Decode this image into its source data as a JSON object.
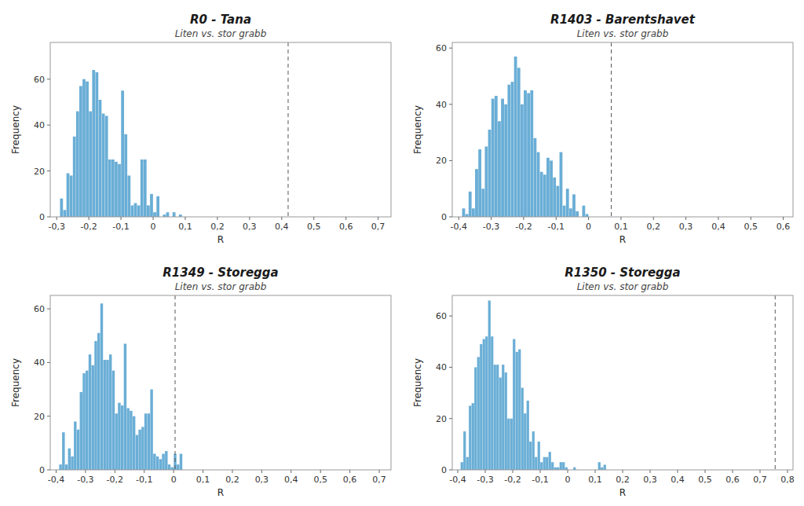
{
  "chart_data": [
    {
      "type": "histogram",
      "title": "R0 - Tana",
      "subtitle": "Liten vs. stor grabb",
      "x_label": "R",
      "y_label": "Frequency",
      "color": "#6aaed6",
      "grid": false,
      "xlim": [
        -0.32,
        0.74
      ],
      "ylim": [
        0,
        76
      ],
      "xticks": [
        {
          "value": -0.3,
          "label": "-0,3"
        },
        {
          "value": -0.2,
          "label": "-0,2"
        },
        {
          "value": -0.1,
          "label": "-0,1"
        },
        0,
        {
          "value": 0.1,
          "label": "0,1"
        },
        {
          "value": 0.2,
          "label": "0,2"
        },
        {
          "value": 0.3,
          "label": "0,3"
        },
        {
          "value": 0.4,
          "label": "0,4"
        },
        {
          "value": 0.5,
          "label": "0,5"
        },
        {
          "value": 0.6,
          "label": "0,6"
        },
        {
          "value": 0.7,
          "label": "0,7"
        }
      ],
      "yticks": [
        0,
        20,
        40,
        60
      ],
      "reference_line": 0.42,
      "bins": [
        -0.29,
        -0.28,
        -0.27,
        -0.26,
        -0.25,
        -0.24,
        -0.23,
        -0.22,
        -0.21,
        -0.2,
        -0.19,
        -0.18,
        -0.17,
        -0.16,
        -0.15,
        -0.14,
        -0.13,
        -0.12,
        -0.11,
        -0.1,
        -0.09,
        -0.08,
        -0.07,
        -0.06,
        -0.05,
        -0.04,
        -0.03,
        -0.02,
        -0.01,
        0,
        0.01,
        0.02,
        0.03,
        0.04,
        0.05,
        0.06,
        0.07,
        0.08,
        0.09
      ],
      "values": [
        8,
        3,
        19,
        18,
        35,
        46,
        57,
        60,
        59,
        46,
        64,
        63,
        51,
        45,
        44,
        25,
        25,
        24,
        23,
        55,
        36,
        18,
        5,
        6,
        5,
        25,
        25,
        5,
        10,
        2,
        9,
        0,
        1,
        2,
        0,
        2,
        0,
        1
      ]
    },
    {
      "type": "histogram",
      "title": "R1403 - Barentshavet",
      "subtitle": "Liten vs. stor grabb",
      "x_label": "R",
      "y_label": "Frequency",
      "color": "#6aaed6",
      "grid": false,
      "xlim": [
        -0.42,
        0.63
      ],
      "ylim": [
        0,
        62
      ],
      "xticks": [
        {
          "value": -0.4,
          "label": "-0,4"
        },
        {
          "value": -0.3,
          "label": "-0,3"
        },
        {
          "value": -0.2,
          "label": "-0,2"
        },
        {
          "value": -0.1,
          "label": "-0,1"
        },
        0,
        {
          "value": 0.1,
          "label": "0,1"
        },
        {
          "value": 0.2,
          "label": "0,2"
        },
        {
          "value": 0.3,
          "label": "0,3"
        },
        {
          "value": 0.4,
          "label": "0,4"
        },
        {
          "value": 0.5,
          "label": "0,5"
        },
        {
          "value": 0.6,
          "label": "0,6"
        }
      ],
      "yticks": [
        0,
        20,
        40,
        60
      ],
      "reference_line": 0.07,
      "bins": [
        -0.39,
        -0.38,
        -0.37,
        -0.36,
        -0.35,
        -0.34,
        -0.33,
        -0.32,
        -0.31,
        -0.3,
        -0.29,
        -0.28,
        -0.27,
        -0.26,
        -0.25,
        -0.24,
        -0.23,
        -0.22,
        -0.21,
        -0.2,
        -0.19,
        -0.18,
        -0.17,
        -0.16,
        -0.15,
        -0.14,
        -0.13,
        -0.12,
        -0.11,
        -0.1,
        -0.09,
        -0.08,
        -0.07,
        -0.06,
        -0.05,
        -0.04,
        -0.03,
        -0.02,
        -0.01,
        0
      ],
      "values": [
        3,
        1,
        9,
        3,
        17,
        24,
        10,
        25,
        31,
        42,
        43,
        34,
        42,
        40,
        47,
        48,
        57,
        53,
        40,
        45,
        44,
        45,
        28,
        23,
        16,
        15,
        21,
        20,
        14,
        11,
        23,
        4,
        10,
        3,
        8,
        2,
        0,
        4,
        1
      ]
    },
    {
      "type": "histogram",
      "title": "R1349 - Storegga",
      "subtitle": "Liten vs. stor grabb",
      "x_label": "R",
      "y_label": "Frequency",
      "color": "#6aaed6",
      "grid": false,
      "xlim": [
        -0.42,
        0.74
      ],
      "ylim": [
        0,
        65
      ],
      "xticks": [
        {
          "value": -0.4,
          "label": "-0,4"
        },
        {
          "value": -0.3,
          "label": "-0,3"
        },
        {
          "value": -0.2,
          "label": "-0,2"
        },
        {
          "value": -0.1,
          "label": "-0,1"
        },
        0,
        {
          "value": 0.1,
          "label": "0,1"
        },
        {
          "value": 0.2,
          "label": "0,2"
        },
        {
          "value": 0.3,
          "label": "0,3"
        },
        {
          "value": 0.4,
          "label": "0,4"
        },
        {
          "value": 0.5,
          "label": "0,5"
        },
        {
          "value": 0.6,
          "label": "0,6"
        },
        {
          "value": 0.7,
          "label": "0,7"
        }
      ],
      "yticks": [
        0,
        20,
        40,
        60
      ],
      "reference_line": 0.005,
      "bins": [
        -0.39,
        -0.38,
        -0.37,
        -0.36,
        -0.35,
        -0.34,
        -0.33,
        -0.32,
        -0.31,
        -0.3,
        -0.29,
        -0.28,
        -0.27,
        -0.26,
        -0.25,
        -0.24,
        -0.23,
        -0.22,
        -0.21,
        -0.2,
        -0.19,
        -0.18,
        -0.17,
        -0.16,
        -0.15,
        -0.14,
        -0.13,
        -0.12,
        -0.11,
        -0.1,
        -0.09,
        -0.08,
        -0.07,
        -0.06,
        -0.05,
        -0.04,
        -0.03,
        -0.02,
        -0.01,
        0,
        0.01,
        0.02,
        0.03
      ],
      "values": [
        2,
        14,
        2,
        8,
        5,
        18,
        15,
        29,
        36,
        37,
        43,
        39,
        48,
        51,
        62,
        41,
        41,
        43,
        37,
        21,
        25,
        24,
        47,
        23,
        22,
        20,
        13,
        15,
        16,
        21,
        21,
        30,
        6,
        5,
        4,
        6,
        7,
        2,
        1,
        6,
        2,
        6
      ]
    },
    {
      "type": "histogram",
      "title": "R1350 - Storegga",
      "subtitle": "Liten vs. stor grabb",
      "x_label": "R",
      "y_label": "Frequency",
      "color": "#6aaed6",
      "grid": false,
      "xlim": [
        -0.42,
        0.82
      ],
      "ylim": [
        0,
        68
      ],
      "xticks": [
        {
          "value": -0.4,
          "label": "-0,4"
        },
        {
          "value": -0.3,
          "label": "-0,3"
        },
        {
          "value": -0.2,
          "label": "-0,2"
        },
        {
          "value": -0.1,
          "label": "-0,1"
        },
        0,
        {
          "value": 0.1,
          "label": "0,1"
        },
        {
          "value": 0.2,
          "label": "0,2"
        },
        {
          "value": 0.3,
          "label": "0,3"
        },
        {
          "value": 0.4,
          "label": "0,4"
        },
        {
          "value": 0.5,
          "label": "0,5"
        },
        {
          "value": 0.6,
          "label": "0,6"
        },
        {
          "value": 0.7,
          "label": "0,7"
        },
        {
          "value": 0.8,
          "label": "0,8"
        }
      ],
      "yticks": [
        0,
        20,
        40,
        60
      ],
      "reference_line": 0.755,
      "bins": [
        -0.39,
        -0.38,
        -0.37,
        -0.36,
        -0.35,
        -0.34,
        -0.33,
        -0.32,
        -0.31,
        -0.3,
        -0.29,
        -0.28,
        -0.27,
        -0.26,
        -0.25,
        -0.24,
        -0.23,
        -0.22,
        -0.21,
        -0.2,
        -0.19,
        -0.18,
        -0.17,
        -0.16,
        -0.15,
        -0.14,
        -0.13,
        -0.12,
        -0.11,
        -0.1,
        -0.09,
        -0.08,
        -0.07,
        -0.06,
        -0.05,
        -0.04,
        -0.03,
        -0.02,
        -0.01,
        0,
        0.01,
        0.02,
        0.03,
        0.04,
        0.05,
        0.06,
        0.07,
        0.08,
        0.09,
        0.1,
        0.11,
        0.12,
        0.13,
        0.14
      ],
      "values": [
        3,
        15,
        5,
        25,
        26,
        40,
        44,
        49,
        51,
        52,
        66,
        52,
        41,
        41,
        36,
        41,
        38,
        20,
        20,
        51,
        46,
        47,
        32,
        22,
        27,
        11,
        15,
        5,
        11,
        3,
        5,
        5,
        7,
        3,
        1,
        1,
        3,
        3,
        1,
        0,
        0,
        1,
        0,
        0,
        0,
        0,
        0,
        0,
        0,
        0,
        3,
        1,
        2
      ]
    }
  ]
}
